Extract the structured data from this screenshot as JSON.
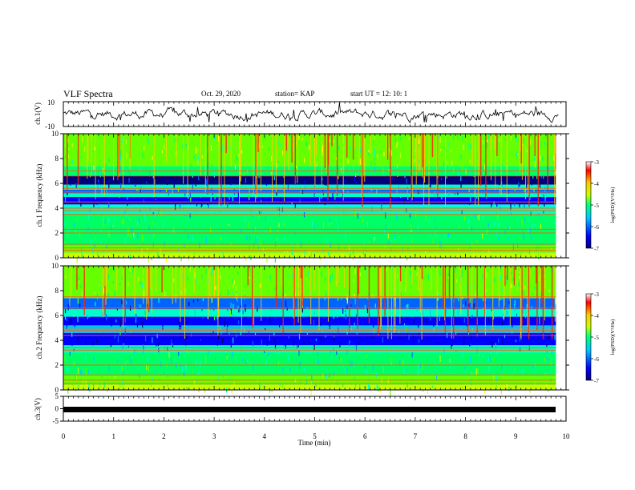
{
  "header": {
    "title": "VLF Spectra",
    "date": "Oct. 29, 2020",
    "station": "station= KAP",
    "start": "start  UT =   12: 10: 1"
  },
  "chart_data": [
    {
      "type": "line",
      "panel": "ch1-waveform",
      "ylabel": "ch.1(V)",
      "ylim": [
        -10,
        10
      ],
      "yticklabels": [
        "10",
        "-10"
      ],
      "xlim": [
        0,
        10
      ],
      "description_values": {
        "baseline": 0,
        "typical_amplitude": 5
      }
    },
    {
      "type": "heatmap",
      "panel": "ch1-spectrogram",
      "ylabel": "ch.1 Frequency (kHz)",
      "ylim": [
        0,
        10
      ],
      "yticks": [
        0,
        2,
        4,
        6,
        8,
        10
      ],
      "xlim": [
        0,
        10
      ],
      "data_end_x": 9.8,
      "bands": [
        {
          "from": 0.0,
          "to": 0.4,
          "level": -4.6
        },
        {
          "from": 0.4,
          "to": 1.0,
          "level": -5.0
        },
        {
          "from": 1.0,
          "to": 3.5,
          "level": -5.3
        },
        {
          "from": 3.5,
          "to": 4.3,
          "level": -5.6
        },
        {
          "from": 4.3,
          "to": 4.9,
          "level": -6.5
        },
        {
          "from": 4.9,
          "to": 5.2,
          "level": -5.6
        },
        {
          "from": 5.2,
          "to": 5.5,
          "level": -6.2
        },
        {
          "from": 5.5,
          "to": 5.9,
          "level": -5.4
        },
        {
          "from": 5.9,
          "to": 6.6,
          "level": -6.7
        },
        {
          "from": 6.6,
          "to": 7.4,
          "level": -5.2
        },
        {
          "from": 7.4,
          "to": 10.0,
          "level": -4.8
        }
      ],
      "lines_khz": [
        0.6,
        0.8,
        1.1,
        2.0,
        2.3,
        3.5,
        3.8,
        4.0,
        4.5,
        5.3,
        5.6,
        6.6,
        7.0
      ]
    },
    {
      "type": "heatmap",
      "panel": "ch2-spectrogram",
      "ylabel": "ch.2 Frequency (kHz)",
      "ylim": [
        0,
        10
      ],
      "yticks": [
        0,
        2,
        4,
        6,
        8,
        10
      ],
      "xlim": [
        0,
        10
      ],
      "data_end_x": 9.8,
      "bands": [
        {
          "from": 0.0,
          "to": 0.4,
          "level": -4.6
        },
        {
          "from": 0.4,
          "to": 1.2,
          "level": -5.0
        },
        {
          "from": 1.2,
          "to": 3.0,
          "level": -5.3
        },
        {
          "from": 3.0,
          "to": 3.6,
          "level": -5.6
        },
        {
          "from": 3.6,
          "to": 4.6,
          "level": -6.5
        },
        {
          "from": 4.6,
          "to": 5.2,
          "level": -5.8
        },
        {
          "from": 5.2,
          "to": 5.9,
          "level": -6.6
        },
        {
          "from": 5.9,
          "to": 6.5,
          "level": -5.6
        },
        {
          "from": 6.5,
          "to": 7.4,
          "level": -6.2
        },
        {
          "from": 7.4,
          "to": 10.0,
          "level": -4.9
        }
      ],
      "lines_khz": [
        0.5,
        0.8,
        1.2,
        2.0,
        3.2,
        3.4,
        4.4,
        4.8,
        5.0,
        6.6,
        7.5
      ]
    },
    {
      "type": "line",
      "panel": "ch3-waveform",
      "ylabel": "ch.3(V)",
      "ylim": [
        -5,
        5
      ],
      "yticks": [
        -5,
        0,
        5
      ],
      "xlim": [
        0,
        10
      ],
      "xlabel": "Time  (min)",
      "xticks": [
        0,
        1,
        2,
        3,
        4,
        5,
        6,
        7,
        8,
        9,
        10
      ],
      "band": [
        -0.6,
        0.6
      ]
    }
  ],
  "colorbar": {
    "label": "log(PSD)(V²/Hz)",
    "range": [
      -7,
      -3
    ],
    "ticks": [
      -3,
      -4,
      -5,
      -6,
      -7
    ],
    "tick_labels": [
      "-3",
      "-4",
      "-5",
      "-6",
      "-7"
    ],
    "stops": [
      "#00007a",
      "#0000ff",
      "#00c8ff",
      "#00ff80",
      "#c8ff00",
      "#ffc800",
      "#ff0000",
      "#ffffff"
    ]
  }
}
